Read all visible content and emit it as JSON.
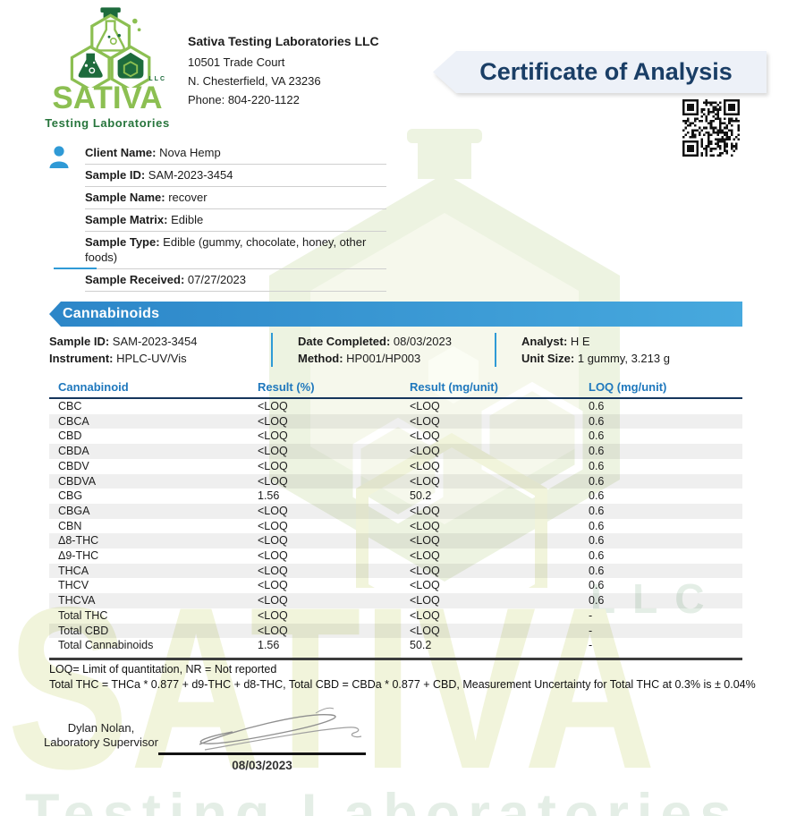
{
  "header": {
    "logo": {
      "brand": "SATIVA",
      "llc": "LLC",
      "tagline": "Testing Laboratories"
    },
    "lab": {
      "name": "Sativa Testing Laboratories LLC",
      "address_line1": "10501 Trade Court",
      "address_line2": "N. Chesterfield, VA 23236",
      "phone": "Phone: 804-220-1122"
    },
    "title": "Certificate of Analysis"
  },
  "client": {
    "rows": [
      {
        "label": "Client Name:",
        "value": "Nova Hemp"
      },
      {
        "label": "Sample ID:",
        "value": "SAM-2023-3454"
      },
      {
        "label": "Sample Name:",
        "value": "recover"
      },
      {
        "label": "Sample Matrix:",
        "value": "Edible"
      },
      {
        "label": "Sample Type:",
        "value": "Edible (gummy, chocolate, honey, other foods)"
      },
      {
        "label": "Sample Received:",
        "value": "07/27/2023"
      }
    ]
  },
  "cannabinoids": {
    "section_title": "Cannabinoids",
    "meta": [
      [
        {
          "label": "Sample ID:",
          "value": "SAM-2023-3454"
        },
        {
          "label": "Instrument:",
          "value": "HPLC-UV/Vis"
        }
      ],
      [
        {
          "label": "Date Completed:",
          "value": "08/03/2023"
        },
        {
          "label": "Method:",
          "value": "HP001/HP003"
        }
      ],
      [
        {
          "label": "Analyst:",
          "value": "H E"
        },
        {
          "label": "Unit Size:",
          "value": "1 gummy, 3.213 g"
        }
      ]
    ],
    "table": {
      "headers": [
        "Cannabinoid",
        "Result (%)",
        "Result (mg/unit)",
        "LOQ (mg/unit)"
      ],
      "rows": [
        [
          "CBC",
          "<LOQ",
          "<LOQ",
          "0.6"
        ],
        [
          "CBCA",
          "<LOQ",
          "<LOQ",
          "0.6"
        ],
        [
          "CBD",
          "<LOQ",
          "<LOQ",
          "0.6"
        ],
        [
          "CBDA",
          "<LOQ",
          "<LOQ",
          "0.6"
        ],
        [
          "CBDV",
          "<LOQ",
          "<LOQ",
          "0.6"
        ],
        [
          "CBDVA",
          "<LOQ",
          "<LOQ",
          "0.6"
        ],
        [
          "CBG",
          "1.56",
          "50.2",
          "0.6"
        ],
        [
          "CBGA",
          "<LOQ",
          "<LOQ",
          "0.6"
        ],
        [
          "CBN",
          "<LOQ",
          "<LOQ",
          "0.6"
        ],
        [
          "Δ8-THC",
          "<LOQ",
          "<LOQ",
          "0.6"
        ],
        [
          "Δ9-THC",
          "<LOQ",
          "<LOQ",
          "0.6"
        ],
        [
          "THCA",
          "<LOQ",
          "<LOQ",
          "0.6"
        ],
        [
          "THCV",
          "<LOQ",
          "<LOQ",
          "0.6"
        ],
        [
          "THCVA",
          "<LOQ",
          "<LOQ",
          "0.6"
        ],
        [
          "Total THC",
          "<LOQ",
          "<LOQ",
          "-"
        ],
        [
          "Total CBD",
          "<LOQ",
          "<LOQ",
          "-"
        ],
        [
          "Total Cannabinoids",
          "1.56",
          "50.2",
          "-"
        ]
      ]
    },
    "footnotes": [
      "LOQ= Limit of quantitation, NR = Not reported",
      "Total THC = THCa * 0.877 + d9-THC + d8-THC, Total CBD = CBDa * 0.877 + CBD, Measurement Uncertainty for Total THC at 0.3% is ± 0.04%"
    ]
  },
  "signature": {
    "signer_line1": "Dylan Nolan,",
    "signer_line2": "Laboratory Supervisor",
    "date": "08/03/2023"
  },
  "watermark": {
    "brand": "SATIVA",
    "llc": "LLC",
    "tagline": "Testing Laboratories"
  },
  "colors": {
    "navy": "#1a3e66",
    "banner_bg": "#edf1f8",
    "bar_left": "#2c86c8",
    "bar_right": "#47a9de",
    "accent_blue": "#2f9ad6",
    "table_blue": "#1f78bd",
    "light_green": "#8cbf52",
    "dark_green": "#1d6b3c",
    "wm_green": "#edf3e1",
    "wm_green2": "#e4eee6",
    "wm_yellowgreen": "#f1f4db"
  }
}
